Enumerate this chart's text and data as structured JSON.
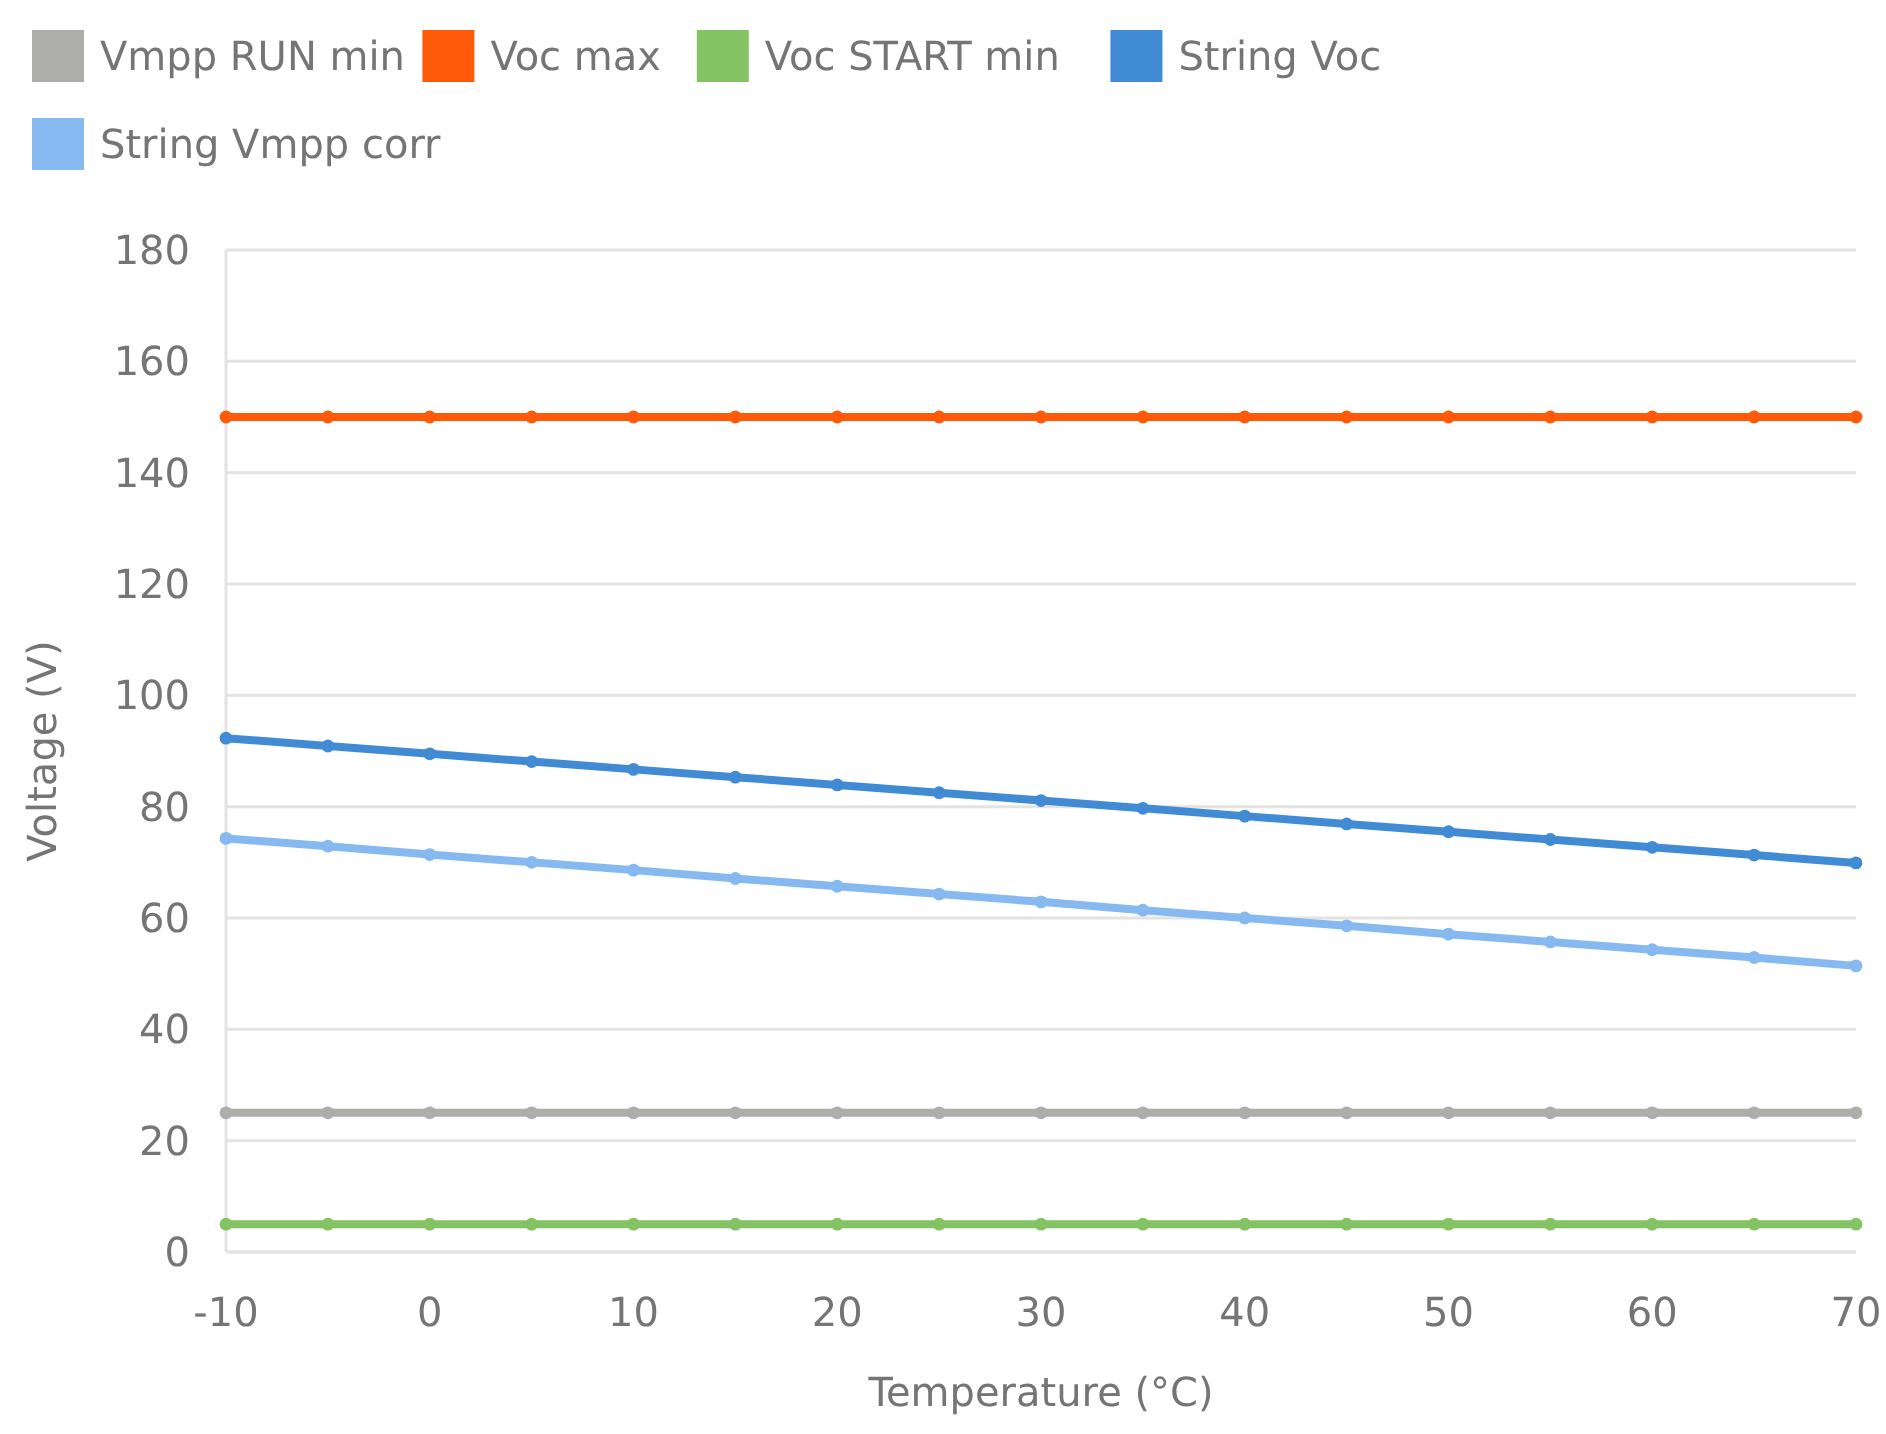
{
  "chart_data": {
    "type": "line",
    "xlabel": "Temperature (°C)",
    "ylabel": "Voltage (V)",
    "x": [
      -10,
      -5,
      0,
      5,
      10,
      15,
      20,
      25,
      30,
      35,
      40,
      45,
      50,
      55,
      60,
      65,
      70
    ],
    "xlim": [
      -10,
      70
    ],
    "xticks": [
      -10,
      0,
      10,
      20,
      30,
      40,
      50,
      60,
      70
    ],
    "ylim": [
      0,
      180
    ],
    "yticks": [
      0,
      20,
      40,
      60,
      80,
      100,
      120,
      140,
      160,
      180
    ],
    "grid": "y",
    "legend": "top",
    "marker": "circle",
    "line_style": "solid",
    "series": [
      {
        "name": "Vmpp RUN min",
        "color": "#adadaa",
        "values": [
          25,
          25,
          25,
          25,
          25,
          25,
          25,
          25,
          25,
          25,
          25,
          25,
          25,
          25,
          25,
          25,
          25
        ]
      },
      {
        "name": "Voc max",
        "color": "#ff5a0a",
        "values": [
          150,
          150,
          150,
          150,
          150,
          150,
          150,
          150,
          150,
          150,
          150,
          150,
          150,
          150,
          150,
          150,
          150
        ]
      },
      {
        "name": "Voc START min",
        "color": "#84c363",
        "values": [
          5,
          5,
          5,
          5,
          5,
          5,
          5,
          5,
          5,
          5,
          5,
          5,
          5,
          5,
          5,
          5,
          5
        ]
      },
      {
        "name": "String Voc",
        "color": "#418bd4",
        "values": [
          92.3,
          90.9,
          89.5,
          88.1,
          86.7,
          85.3,
          83.9,
          82.5,
          81.1,
          79.7,
          78.3,
          76.9,
          75.5,
          74.1,
          72.7,
          71.3,
          69.9
        ]
      },
      {
        "name": "String Vmpp corr",
        "color": "#85b9f0",
        "values": [
          74.3,
          72.9,
          71.4,
          70.0,
          68.6,
          67.1,
          65.7,
          64.3,
          62.9,
          61.4,
          60.0,
          58.6,
          57.1,
          55.7,
          54.3,
          52.9,
          51.4
        ]
      }
    ]
  }
}
